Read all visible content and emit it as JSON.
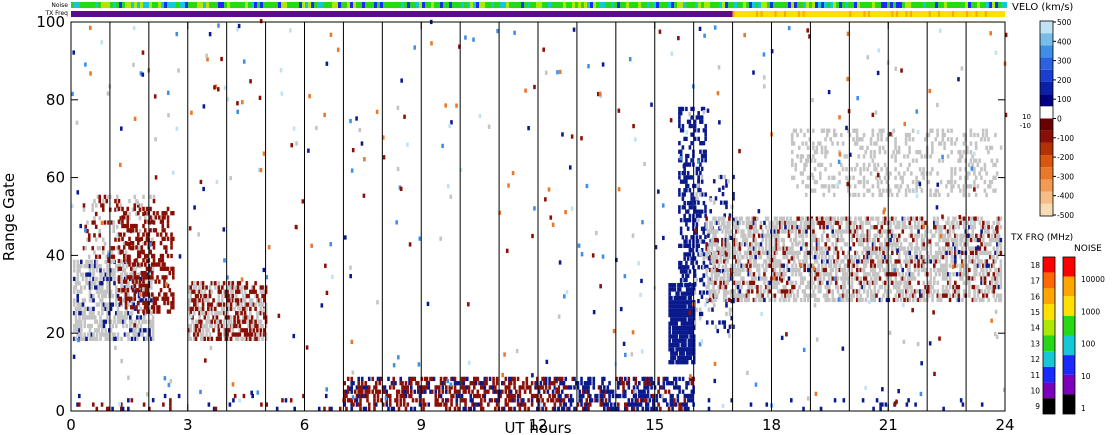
{
  "chart_data": {
    "type": "heatmap",
    "xlabel": "UT hours",
    "ylabel": "Range Gate",
    "xlim": [
      0,
      24
    ],
    "ylim": [
      0,
      100
    ],
    "xticks": [
      "0",
      "3",
      "6",
      "9",
      "12",
      "15",
      "18",
      "21",
      "24"
    ],
    "yticks": [
      "0",
      "20",
      "40",
      "60",
      "80",
      "100"
    ],
    "top_strips": [
      {
        "label": "Noise",
        "description": "mostly green/yellow-green interleaved with blue"
      },
      {
        "label": "TX Freq",
        "segments": [
          {
            "from": 0,
            "to": 17,
            "color": "#5a0c8c"
          },
          {
            "from": 17,
            "to": 24,
            "color": "#ffe000"
          }
        ]
      }
    ],
    "velocity_colorbar": {
      "title": "VELO (km/s)",
      "tick_labels": [
        "500",
        "400",
        "300",
        "200",
        "100",
        "0",
        "-100",
        "-200",
        "-300",
        "-400",
        "-500"
      ],
      "center_labels": [
        "10",
        "-10"
      ],
      "colors": [
        "#f9dcb4",
        "#f7bd86",
        "#f29b55",
        "#e8782a",
        "#d8560f",
        "#b23205",
        "#8a0f05",
        "#6a0000",
        "#ffffff",
        "#000080",
        "#0a20a8",
        "#1a3fd0",
        "#2a62e0",
        "#3f8ee8",
        "#78bde8",
        "#bfe3f2"
      ]
    },
    "txfreq_colorbar": {
      "title": "TX FRQ (MHz)",
      "tick_labels": [
        "18",
        "17",
        "16",
        "15",
        "14",
        "13",
        "12",
        "11",
        "10",
        "9"
      ],
      "colors": [
        "#ff0000",
        "#ff6800",
        "#ffa500",
        "#ffdf00",
        "#aee800",
        "#27d814",
        "#16c7d6",
        "#1a2aff",
        "#7b00b8",
        "#000000"
      ]
    },
    "noise_colorbar": {
      "title": "NOISE",
      "tick_labels": [
        "10000",
        "1000",
        "100",
        "10",
        "1"
      ],
      "colors": [
        "#ff0000",
        "#ffa500",
        "#ffe000",
        "#27d814",
        "#16c7d6",
        "#1a2aff",
        "#7b00b8",
        "#000000"
      ]
    },
    "scatter_regions": [
      {
        "desc": "ground scatter (grey)",
        "x": [
          0,
          2.1
        ],
        "y": [
          18,
          55
        ]
      },
      {
        "desc": "ground scatter (grey)",
        "x": [
          3,
          5
        ],
        "y": [
          18,
          32
        ]
      },
      {
        "desc": "ground scatter (grey)",
        "x": [
          16.2,
          24
        ],
        "y": [
          28,
          50
        ]
      },
      {
        "desc": "ground scatter (grey)",
        "x": [
          18.5,
          23.8
        ],
        "y": [
          55,
          72
        ]
      },
      {
        "desc": "negative velocity (dark red)",
        "x": [
          1.2,
          2.6
        ],
        "y": [
          25,
          52
        ]
      },
      {
        "desc": "negative velocity (dark red)",
        "x": [
          3,
          5
        ],
        "y": [
          18,
          33
        ]
      },
      {
        "desc": "negative velocity (dark red)",
        "x": [
          7,
          14.5
        ],
        "y": [
          0,
          8
        ]
      },
      {
        "desc": "positive velocity (dark blue)",
        "x": [
          15.4,
          16.2
        ],
        "y": [
          12,
          78
        ]
      },
      {
        "desc": "positive velocity (dark blue)",
        "x": [
          12,
          16
        ],
        "y": [
          0,
          8
        ]
      }
    ]
  }
}
